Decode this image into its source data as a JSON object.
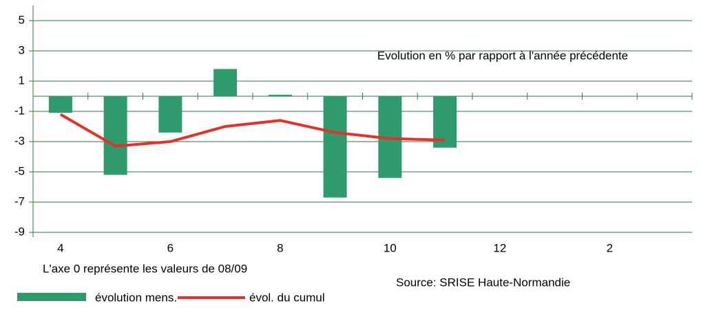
{
  "chart_data": {
    "type": "bar_line",
    "annotation": "Evolution en % par rapport à l'année précédente",
    "footnote": "L'axe 0 représente les valeurs de 08/09",
    "source": "Source: SRISE Haute-Normandie",
    "categories": [
      "4",
      null,
      "6",
      null,
      "8",
      null,
      "10",
      null,
      "12",
      null,
      "2",
      null
    ],
    "series": [
      {
        "name": "évolution mens.",
        "type": "bar",
        "color": "#2f9a6c",
        "values": [
          -1.1,
          -5.2,
          -2.4,
          1.8,
          0.1,
          -6.7,
          -5.4,
          -3.4,
          null,
          null,
          null,
          null
        ]
      },
      {
        "name": "évol. du cumul",
        "type": "line",
        "color": "#e8302a",
        "values": [
          -1.2,
          -3.3,
          -3.0,
          -2.0,
          -1.6,
          -2.4,
          -2.8,
          -2.9,
          null,
          null,
          null,
          null
        ]
      }
    ],
    "ylim": [
      -9,
      5
    ],
    "yticks": [
      5,
      3,
      1,
      -1,
      -3,
      -5,
      -7,
      -9
    ],
    "grid": true
  }
}
